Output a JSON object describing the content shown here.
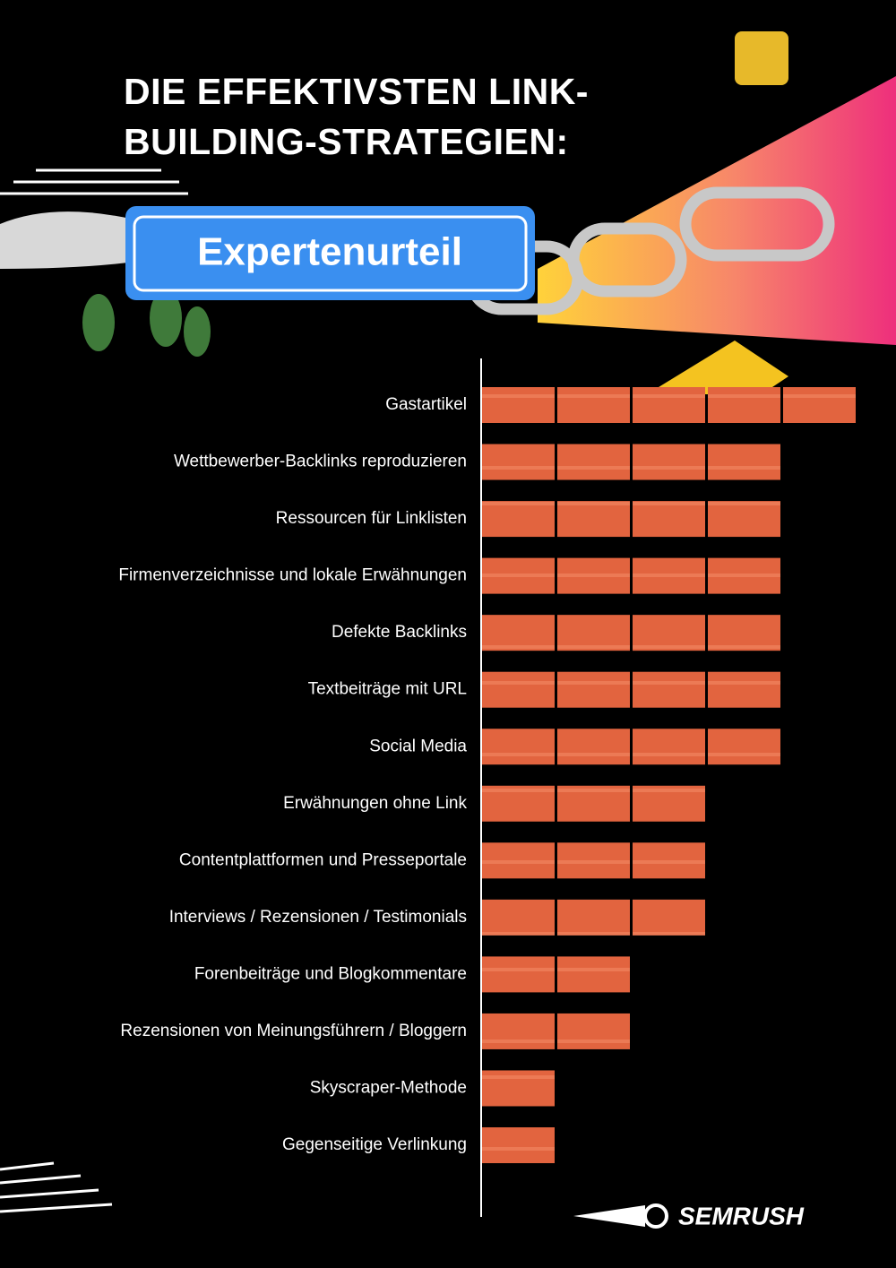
{
  "chart_data": {
    "type": "bar",
    "orientation": "horizontal",
    "title": "DIE EFFEKTIVSTEN LINK-BUILDING-STRATEGIEN:",
    "subtitle": "Expertenurteil",
    "brand": "SEMRUSH",
    "color": "#e2643f",
    "categories": [
      "Gastartikel",
      "Wettbewerber-Backlinks reproduzieren",
      "Ressourcen für Linklisten",
      "Firmenverzeichnisse und lokale Erwähnungen",
      "Defekte Backlinks",
      "Textbeiträge mit URL",
      "Social Media",
      "Erwähnungen ohne Link",
      "Contentplattformen und Presseportale",
      "Interviews / Rezensionen / Testimonials",
      "Forenbeiträge und Blogkommentare",
      "Rezensionen von Meinungsführern / Bloggern",
      "Skyscraper-Methode",
      "Gegenseitige Verlinkung"
    ],
    "values": [
      5,
      4,
      4,
      4,
      4,
      4,
      4,
      3,
      3,
      3,
      2,
      2,
      1,
      1
    ]
  }
}
